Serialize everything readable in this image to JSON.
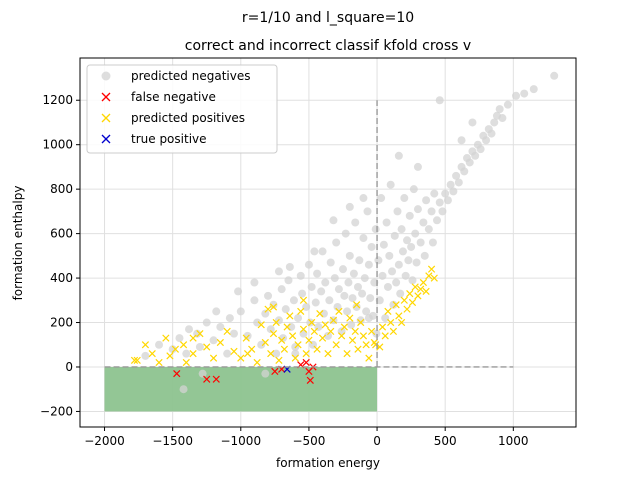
{
  "suptitle": "r=1/10 and l_square=10",
  "chart_data": {
    "type": "scatter",
    "title": "correct and incorrect classif kfold cross v",
    "xlabel": "formation energy",
    "ylabel": "formation enthalpy",
    "xlim": [
      -2180,
      1460
    ],
    "ylim": [
      -270,
      1390
    ],
    "xticks": [
      -2000,
      -1500,
      -1000,
      -500,
      0,
      500,
      1000
    ],
    "yticks": [
      -200,
      0,
      200,
      400,
      600,
      800,
      1000,
      1200
    ],
    "grid": true,
    "legend_position": "upper-left",
    "shaded_region": {
      "x": [
        -2000,
        0
      ],
      "y": [
        -200,
        0
      ],
      "color": "#8dc38f"
    },
    "reference_lines": [
      {
        "orientation": "vertical",
        "x": 0,
        "y": [
          0,
          1200
        ],
        "color": "#999999",
        "style": "dashed"
      },
      {
        "orientation": "horizontal",
        "y": 0,
        "x": [
          -2000,
          1000
        ],
        "color": "#999999",
        "style": "dashed"
      }
    ],
    "series": [
      {
        "name": "predicted negatives",
        "marker": "circle",
        "color": "#d3d3d3",
        "points": [
          [
            -1500,
            80
          ],
          [
            -1450,
            130
          ],
          [
            -1400,
            60
          ],
          [
            -1380,
            170
          ],
          [
            -1300,
            90
          ],
          [
            -1250,
            200
          ],
          [
            -1200,
            120
          ],
          [
            -1150,
            180
          ],
          [
            -1100,
            60
          ],
          [
            -1080,
            220
          ],
          [
            -1050,
            150
          ],
          [
            -1000,
            250
          ],
          [
            -950,
            140
          ],
          [
            -900,
            300
          ],
          [
            -880,
            200
          ],
          [
            -850,
            100
          ],
          [
            -820,
            240
          ],
          [
            -800,
            320
          ],
          [
            -780,
            170
          ],
          [
            -760,
            280
          ],
          [
            -740,
            60
          ],
          [
            -720,
            210
          ],
          [
            -700,
            350
          ],
          [
            -690,
            130
          ],
          [
            -670,
            260
          ],
          [
            -650,
            390
          ],
          [
            -630,
            180
          ],
          [
            -610,
            300
          ],
          [
            -600,
            90
          ],
          [
            -580,
            220
          ],
          [
            -560,
            410
          ],
          [
            -550,
            330
          ],
          [
            -540,
            150
          ],
          [
            -520,
            270
          ],
          [
            -500,
            460
          ],
          [
            -490,
            200
          ],
          [
            -480,
            360
          ],
          [
            -470,
            100
          ],
          [
            -450,
            290
          ],
          [
            -440,
            420
          ],
          [
            -430,
            180
          ],
          [
            -410,
            340
          ],
          [
            -400,
            520
          ],
          [
            -390,
            240
          ],
          [
            -380,
            380
          ],
          [
            -360,
            140
          ],
          [
            -350,
            300
          ],
          [
            -340,
            470
          ],
          [
            -320,
            210
          ],
          [
            -310,
            400
          ],
          [
            -300,
            560
          ],
          [
            -290,
            270
          ],
          [
            -280,
            350
          ],
          [
            -260,
            160
          ],
          [
            -250,
            440
          ],
          [
            -240,
            320
          ],
          [
            -230,
            600
          ],
          [
            -220,
            250
          ],
          [
            -210,
            380
          ],
          [
            -200,
            500
          ],
          [
            -190,
            190
          ],
          [
            -180,
            310
          ],
          [
            -170,
            420
          ],
          [
            -160,
            650
          ],
          [
            -150,
            270
          ],
          [
            -140,
            360
          ],
          [
            -130,
            480
          ],
          [
            -120,
            210
          ],
          [
            -110,
            330
          ],
          [
            -100,
            580
          ],
          [
            -90,
            400
          ],
          [
            -80,
            250
          ],
          [
            -70,
            700
          ],
          [
            -60,
            460
          ],
          [
            -50,
            310
          ],
          [
            -40,
            540
          ],
          [
            -30,
            230
          ],
          [
            -20,
            380
          ],
          [
            -10,
            620
          ],
          [
            -5,
            150
          ],
          [
            10,
            480
          ],
          [
            20,
            300
          ],
          [
            30,
            760
          ],
          [
            40,
            410
          ],
          [
            50,
            550
          ],
          [
            60,
            220
          ],
          [
            70,
            650
          ],
          [
            80,
            360
          ],
          [
            90,
            500
          ],
          [
            100,
            820
          ],
          [
            110,
            430
          ],
          [
            120,
            280
          ],
          [
            130,
            590
          ],
          [
            140,
            380
          ],
          [
            150,
            700
          ],
          [
            160,
            460
          ],
          [
            170,
            330
          ],
          [
            180,
            620
          ],
          [
            190,
            520
          ],
          [
            200,
            760
          ],
          [
            210,
            410
          ],
          [
            220,
            570
          ],
          [
            230,
            480
          ],
          [
            240,
            680
          ],
          [
            250,
            540
          ],
          [
            260,
            390
          ],
          [
            270,
            800
          ],
          [
            280,
            600
          ],
          [
            290,
            470
          ],
          [
            300,
            710
          ],
          [
            320,
            560
          ],
          [
            340,
            650
          ],
          [
            350,
            500
          ],
          [
            360,
            750
          ],
          [
            380,
            620
          ],
          [
            400,
            700
          ],
          [
            410,
            560
          ],
          [
            420,
            780
          ],
          [
            440,
            660
          ],
          [
            460,
            740
          ],
          [
            480,
            700
          ],
          [
            500,
            780
          ],
          [
            520,
            750
          ],
          [
            540,
            820
          ],
          [
            560,
            790
          ],
          [
            580,
            860
          ],
          [
            600,
            830
          ],
          [
            620,
            900
          ],
          [
            640,
            880
          ],
          [
            660,
            940
          ],
          [
            680,
            920
          ],
          [
            700,
            970
          ],
          [
            720,
            950
          ],
          [
            740,
            1000
          ],
          [
            760,
            980
          ],
          [
            780,
            1040
          ],
          [
            800,
            1020
          ],
          [
            820,
            1070
          ],
          [
            840,
            1050
          ],
          [
            860,
            1100
          ],
          [
            880,
            1130
          ],
          [
            900,
            1160
          ],
          [
            920,
            1120
          ],
          [
            960,
            1180
          ],
          [
            1020,
            1220
          ],
          [
            1080,
            1230
          ],
          [
            1150,
            1250
          ],
          [
            1300,
            1310
          ],
          [
            -1700,
            50
          ],
          [
            -1600,
            100
          ],
          [
            -900,
            380
          ],
          [
            -1020,
            340
          ],
          [
            -640,
            450
          ],
          [
            -720,
            430
          ],
          [
            -1180,
            250
          ],
          [
            -1320,
            150
          ],
          [
            -820,
            -30
          ],
          [
            -1420,
            -100
          ],
          [
            -1280,
            -30
          ],
          [
            -600,
            60
          ],
          [
            -460,
            520
          ],
          [
            -320,
            660
          ],
          [
            -200,
            720
          ],
          [
            -100,
            760
          ],
          [
            160,
            950
          ],
          [
            460,
            1200
          ],
          [
            620,
            1020
          ],
          [
            -60,
            220
          ],
          [
            300,
            900
          ],
          [
            700,
            1100
          ]
        ]
      },
      {
        "name": "false negative",
        "marker": "x",
        "color": "#ff0000",
        "points": [
          [
            -1470,
            -30
          ],
          [
            -1250,
            -55
          ],
          [
            -1180,
            -55
          ],
          [
            -750,
            -20
          ],
          [
            -700,
            -10
          ],
          [
            -560,
            10
          ],
          [
            -520,
            20
          ],
          [
            -500,
            -20
          ],
          [
            -490,
            -60
          ],
          [
            -470,
            0
          ]
        ]
      },
      {
        "name": "predicted positives",
        "marker": "x",
        "color": "#ffd700",
        "points": [
          [
            -1780,
            30
          ],
          [
            -1700,
            100
          ],
          [
            -1650,
            60
          ],
          [
            -1600,
            20
          ],
          [
            -1550,
            130
          ],
          [
            -1520,
            50
          ],
          [
            -1480,
            80
          ],
          [
            -1420,
            100
          ],
          [
            -1400,
            20
          ],
          [
            -1350,
            60
          ],
          [
            -1300,
            150
          ],
          [
            -1250,
            90
          ],
          [
            -1200,
            40
          ],
          [
            -1150,
            110
          ],
          [
            -1100,
            160
          ],
          [
            -1050,
            70
          ],
          [
            -1000,
            40
          ],
          [
            -960,
            130
          ],
          [
            -920,
            80
          ],
          [
            -880,
            20
          ],
          [
            -850,
            190
          ],
          [
            -820,
            110
          ],
          [
            -800,
            260
          ],
          [
            -780,
            60
          ],
          [
            -760,
            150
          ],
          [
            -740,
            200
          ],
          [
            -720,
            30
          ],
          [
            -700,
            120
          ],
          [
            -680,
            80
          ],
          [
            -660,
            180
          ],
          [
            -640,
            230
          ],
          [
            -620,
            140
          ],
          [
            -600,
            40
          ],
          [
            -580,
            100
          ],
          [
            -560,
            250
          ],
          [
            -540,
            170
          ],
          [
            -520,
            60
          ],
          [
            -500,
            120
          ],
          [
            -480,
            200
          ],
          [
            -460,
            160
          ],
          [
            -440,
            80
          ],
          [
            -420,
            240
          ],
          [
            -400,
            130
          ],
          [
            -380,
            190
          ],
          [
            -360,
            60
          ],
          [
            -340,
            160
          ],
          [
            -320,
            210
          ],
          [
            -300,
            100
          ],
          [
            -280,
            250
          ],
          [
            -260,
            140
          ],
          [
            -240,
            180
          ],
          [
            -220,
            60
          ],
          [
            -200,
            220
          ],
          [
            -180,
            120
          ],
          [
            -160,
            160
          ],
          [
            -140,
            80
          ],
          [
            -120,
            200
          ],
          [
            -100,
            140
          ],
          [
            -80,
            100
          ],
          [
            -60,
            40
          ],
          [
            -40,
            160
          ],
          [
            -20,
            110
          ],
          [
            20,
            90
          ],
          [
            40,
            180
          ],
          [
            60,
            140
          ],
          [
            80,
            250
          ],
          [
            100,
            200
          ],
          [
            120,
            160
          ],
          [
            140,
            280
          ],
          [
            160,
            230
          ],
          [
            180,
            200
          ],
          [
            200,
            300
          ],
          [
            220,
            260
          ],
          [
            240,
            330
          ],
          [
            260,
            290
          ],
          [
            280,
            360
          ],
          [
            300,
            320
          ],
          [
            320,
            350
          ],
          [
            340,
            380
          ],
          [
            360,
            340
          ],
          [
            380,
            410
          ],
          [
            400,
            440
          ],
          [
            420,
            400
          ],
          [
            -1760,
            30
          ],
          [
            -1350,
            130
          ],
          [
            -950,
            60
          ],
          [
            -760,
            270
          ],
          [
            -540,
            300
          ],
          [
            -150,
            280
          ],
          [
            -10,
            100
          ]
        ]
      },
      {
        "name": "true positive",
        "marker": "x",
        "color": "#0000cd",
        "points": [
          [
            -660,
            -10
          ]
        ]
      }
    ]
  }
}
